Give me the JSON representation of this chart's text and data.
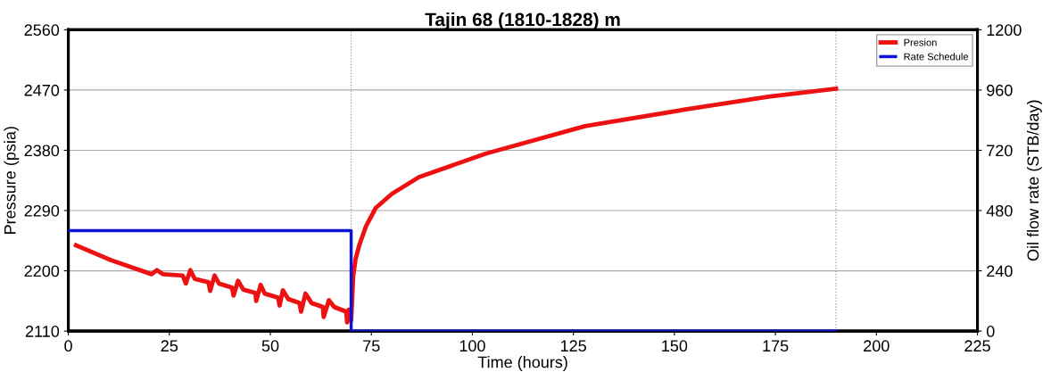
{
  "chart_data": {
    "type": "line",
    "title": "Tajin 68 (1810-1828) m",
    "xlabel": "Time (hours)",
    "ylabel": "Pressure (psia)",
    "y2label": "Oil flow rate (STB/day)",
    "xlim": [
      0,
      225
    ],
    "xticks": [
      0,
      25,
      50,
      75,
      100,
      125,
      150,
      175,
      200,
      225
    ],
    "ylim": [
      2110,
      2560
    ],
    "yticks": [
      2110,
      2200,
      2290,
      2380,
      2470,
      2560
    ],
    "y2lim": [
      0,
      1200
    ],
    "y2ticks": [
      0,
      240,
      480,
      720,
      960,
      1200
    ],
    "grid": "y",
    "legend": "top right",
    "line_style": "solid",
    "marker": "none",
    "ref_lines": [
      {
        "axis": "x",
        "value": 70,
        "color": "#999999",
        "line_style": "dotted"
      },
      {
        "axis": "x",
        "value": 190,
        "color": "#999999",
        "line_style": "dotted"
      }
    ],
    "series": [
      {
        "name": "Presion",
        "color": "#ee1111",
        "x": [
          1.9,
          10.5,
          20.6,
          21.9,
          23.4,
          28.3,
          29.1,
          30.2,
          31.3,
          34.7,
          35.1,
          36.2,
          37.3,
          40.5,
          40.9,
          42.0,
          43.3,
          46.3,
          46.5,
          47.6,
          48.6,
          51.9,
          52.3,
          53.1,
          54.4,
          57.2,
          57.6,
          58.7,
          60.2,
          63.0,
          63.2,
          64.5,
          65.8,
          68.8,
          69.0,
          69.4,
          70.0,
          70.5,
          71.1,
          72.0,
          73.7,
          76.1,
          80.1,
          86.8,
          103.3,
          127.9,
          152.8,
          173.3,
          190.0
        ],
        "values": [
          2238,
          2216,
          2195,
          2201,
          2195,
          2193,
          2181,
          2201,
          2188,
          2183,
          2170,
          2193,
          2181,
          2175,
          2163,
          2185,
          2172,
          2167,
          2155,
          2179,
          2166,
          2160,
          2148,
          2171,
          2158,
          2152,
          2139,
          2166,
          2152,
          2146,
          2131,
          2156,
          2146,
          2139,
          2123,
          2142,
          2126,
          2192,
          2218,
          2238,
          2267,
          2294,
          2315,
          2340,
          2375,
          2416,
          2441,
          2460,
          2472
        ]
      },
      {
        "name": "Rate Schedule",
        "color": "#0a14d8",
        "axis": "y2",
        "type": "step",
        "x": [
          0,
          70,
          70,
          190
        ],
        "values": [
          400,
          400,
          0,
          0
        ]
      }
    ]
  }
}
